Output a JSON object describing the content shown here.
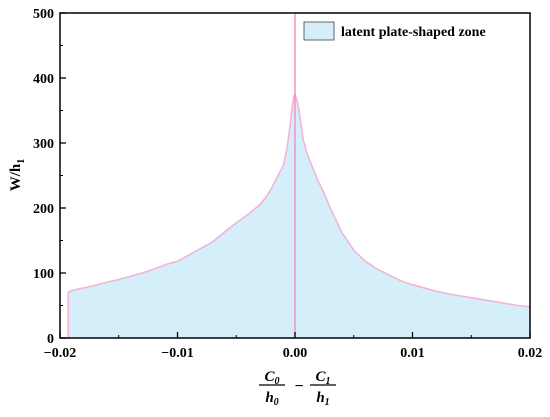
{
  "chart_data": {
    "type": "area",
    "title": "",
    "ylabel_main": "W/h",
    "ylabel_sub": "1",
    "xlabel": {
      "term1": {
        "numerator": "C",
        "numerator_sub": "0",
        "denominator": "h",
        "denominator_sub": "0"
      },
      "operator": "−",
      "term2": {
        "numerator": "C",
        "numerator_sub": "1",
        "denominator": "h",
        "denominator_sub": "1"
      }
    },
    "xlim": [
      -0.02,
      0.02
    ],
    "ylim": [
      0,
      500
    ],
    "xticks": [
      -0.02,
      -0.01,
      0.0,
      0.01,
      0.02
    ],
    "xtick_labels": [
      "−0.02",
      "−0.01",
      "0.00",
      "0.01",
      "0.02"
    ],
    "yticks": [
      0,
      100,
      200,
      300,
      400,
      500
    ],
    "ytick_labels": [
      "0",
      "100",
      "200",
      "300",
      "400",
      "500"
    ],
    "grid": false,
    "legend_position": "top-right",
    "vline_x": 0.0,
    "colors": {
      "fill": "#d4effa",
      "outline": "#f5b3d6",
      "vline": "#f48cc3",
      "axis": "#000000"
    },
    "series": [
      {
        "name": "latent plate-shaped zone",
        "x": [
          -0.0193,
          -0.019,
          -0.018,
          -0.017,
          -0.016,
          -0.015,
          -0.014,
          -0.013,
          -0.012,
          -0.011,
          -0.01,
          -0.009,
          -0.008,
          -0.007,
          -0.006,
          -0.005,
          -0.004,
          -0.003,
          -0.0025,
          -0.002,
          -0.0015,
          -0.001,
          -0.0007,
          -0.0005,
          -0.0003,
          -0.0002,
          -0.0001,
          0.0,
          0.0001,
          0.0003,
          0.0005,
          0.0007,
          0.001,
          0.0015,
          0.002,
          0.0025,
          0.003,
          0.004,
          0.005,
          0.006,
          0.007,
          0.008,
          0.009,
          0.01,
          0.011,
          0.012,
          0.013,
          0.014,
          0.015,
          0.016,
          0.017,
          0.018,
          0.019,
          0.02
        ],
        "y": [
          70,
          73,
          77,
          81,
          86,
          90,
          95,
          100,
          106,
          113,
          118,
          128,
          138,
          148,
          163,
          177,
          190,
          205,
          216,
          230,
          248,
          265,
          290,
          315,
          345,
          360,
          372,
          375,
          370,
          355,
          330,
          305,
          285,
          262,
          240,
          222,
          200,
          162,
          135,
          118,
          106,
          97,
          88,
          82,
          77,
          72,
          68,
          65,
          62,
          59,
          56,
          53,
          50,
          48
        ]
      }
    ]
  }
}
